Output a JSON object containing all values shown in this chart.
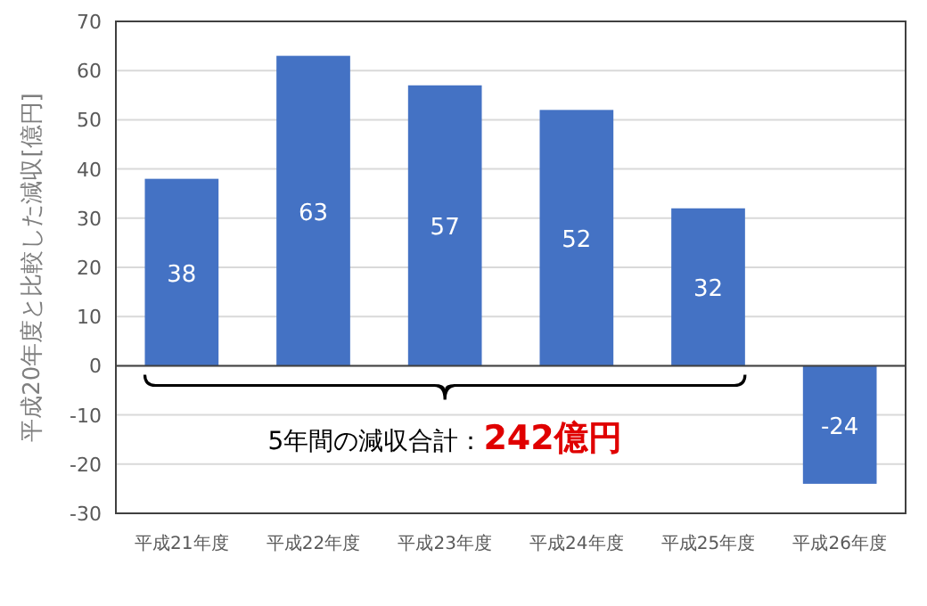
{
  "chart_data": {
    "type": "bar",
    "ylabel": "平成20年度と比較した減収[億円]",
    "categories": [
      "平成21年度",
      "平成22年度",
      "平成23年度",
      "平成24年度",
      "平成25年度",
      "平成26年度"
    ],
    "values": [
      38,
      63,
      57,
      52,
      32,
      -24
    ],
    "color": "#4472c4",
    "data_labels": true,
    "ylim": [
      -30,
      70
    ],
    "yticks": [
      -30,
      -20,
      -10,
      0,
      10,
      20,
      30,
      40,
      50,
      60,
      70
    ],
    "grid": "y",
    "annotations": [
      "5年間の減収合計：",
      "242億円"
    ]
  }
}
